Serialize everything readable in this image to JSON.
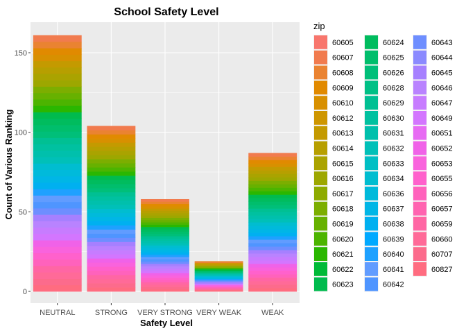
{
  "chart_data": {
    "type": "bar",
    "stacked": true,
    "title": "School Safety Level",
    "xlabel": "Safety Level",
    "ylabel": "Count of Various Ranking",
    "categories": [
      "NEUTRAL",
      "STRONG",
      "VERY STRONG",
      "VERY WEAK",
      "WEAK"
    ],
    "totals": [
      161,
      104,
      58,
      19,
      87
    ],
    "ylim": [
      0,
      170
    ],
    "yticks": [
      0,
      50,
      100,
      150
    ],
    "legend": {
      "title": "zip",
      "position": "right",
      "entries": [
        {
          "label": "60605",
          "color": "#F8766D"
        },
        {
          "label": "60607",
          "color": "#F17B4E"
        },
        {
          "label": "60608",
          "color": "#EA8331"
        },
        {
          "label": "60609",
          "color": "#E18A00"
        },
        {
          "label": "60610",
          "color": "#D89000"
        },
        {
          "label": "60612",
          "color": "#CE9600"
        },
        {
          "label": "60613",
          "color": "#C49A00"
        },
        {
          "label": "60614",
          "color": "#B79F00"
        },
        {
          "label": "60615",
          "color": "#AAA300"
        },
        {
          "label": "60616",
          "color": "#9DA700"
        },
        {
          "label": "60617",
          "color": "#8EAB00"
        },
        {
          "label": "60618",
          "color": "#7CAE00"
        },
        {
          "label": "60619",
          "color": "#67B100"
        },
        {
          "label": "60620",
          "color": "#4CB400"
        },
        {
          "label": "60621",
          "color": "#2AB700"
        },
        {
          "label": "60622",
          "color": "#00BA38"
        },
        {
          "label": "60623",
          "color": "#00BB4E"
        },
        {
          "label": "60624",
          "color": "#00BC5E"
        },
        {
          "label": "60625",
          "color": "#00BE6C"
        },
        {
          "label": "60626",
          "color": "#00BF79"
        },
        {
          "label": "60628",
          "color": "#00C086"
        },
        {
          "label": "60629",
          "color": "#00C093"
        },
        {
          "label": "60630",
          "color": "#00C1A0"
        },
        {
          "label": "60631",
          "color": "#00C0AC"
        },
        {
          "label": "60632",
          "color": "#00C0B8"
        },
        {
          "label": "60633",
          "color": "#00BFC4"
        },
        {
          "label": "60634",
          "color": "#00BDD0"
        },
        {
          "label": "60636",
          "color": "#00BADB"
        },
        {
          "label": "60637",
          "color": "#00B6E6"
        },
        {
          "label": "60638",
          "color": "#00B0F0"
        },
        {
          "label": "60639",
          "color": "#00A9FF"
        },
        {
          "label": "60640",
          "color": "#1EA1FF"
        },
        {
          "label": "60641",
          "color": "#619CFF"
        },
        {
          "label": "60642",
          "color": "#4F95FF"
        },
        {
          "label": "60643",
          "color": "#6E8EFF"
        },
        {
          "label": "60644",
          "color": "#8B8AFF"
        },
        {
          "label": "60645",
          "color": "#A680FF"
        },
        {
          "label": "60646",
          "color": "#B983FF"
        },
        {
          "label": "60647",
          "color": "#C77CFF"
        },
        {
          "label": "60649",
          "color": "#D376FF"
        },
        {
          "label": "60651",
          "color": "#E76BF3"
        },
        {
          "label": "60652",
          "color": "#F062E8"
        },
        {
          "label": "60653",
          "color": "#F963DD"
        },
        {
          "label": "60655",
          "color": "#FF61CC"
        },
        {
          "label": "60656",
          "color": "#FF62BC"
        },
        {
          "label": "60657",
          "color": "#FF64B0"
        },
        {
          "label": "60659",
          "color": "#FF66A4"
        },
        {
          "label": "60660",
          "color": "#FF6A98"
        },
        {
          "label": "60707",
          "color": "#FC6B8C"
        },
        {
          "label": "60827",
          "color": "#FF6C80"
        }
      ]
    },
    "grid": true,
    "panel_background": "#EBEBEB",
    "grid_color": "#FFFFFF"
  }
}
